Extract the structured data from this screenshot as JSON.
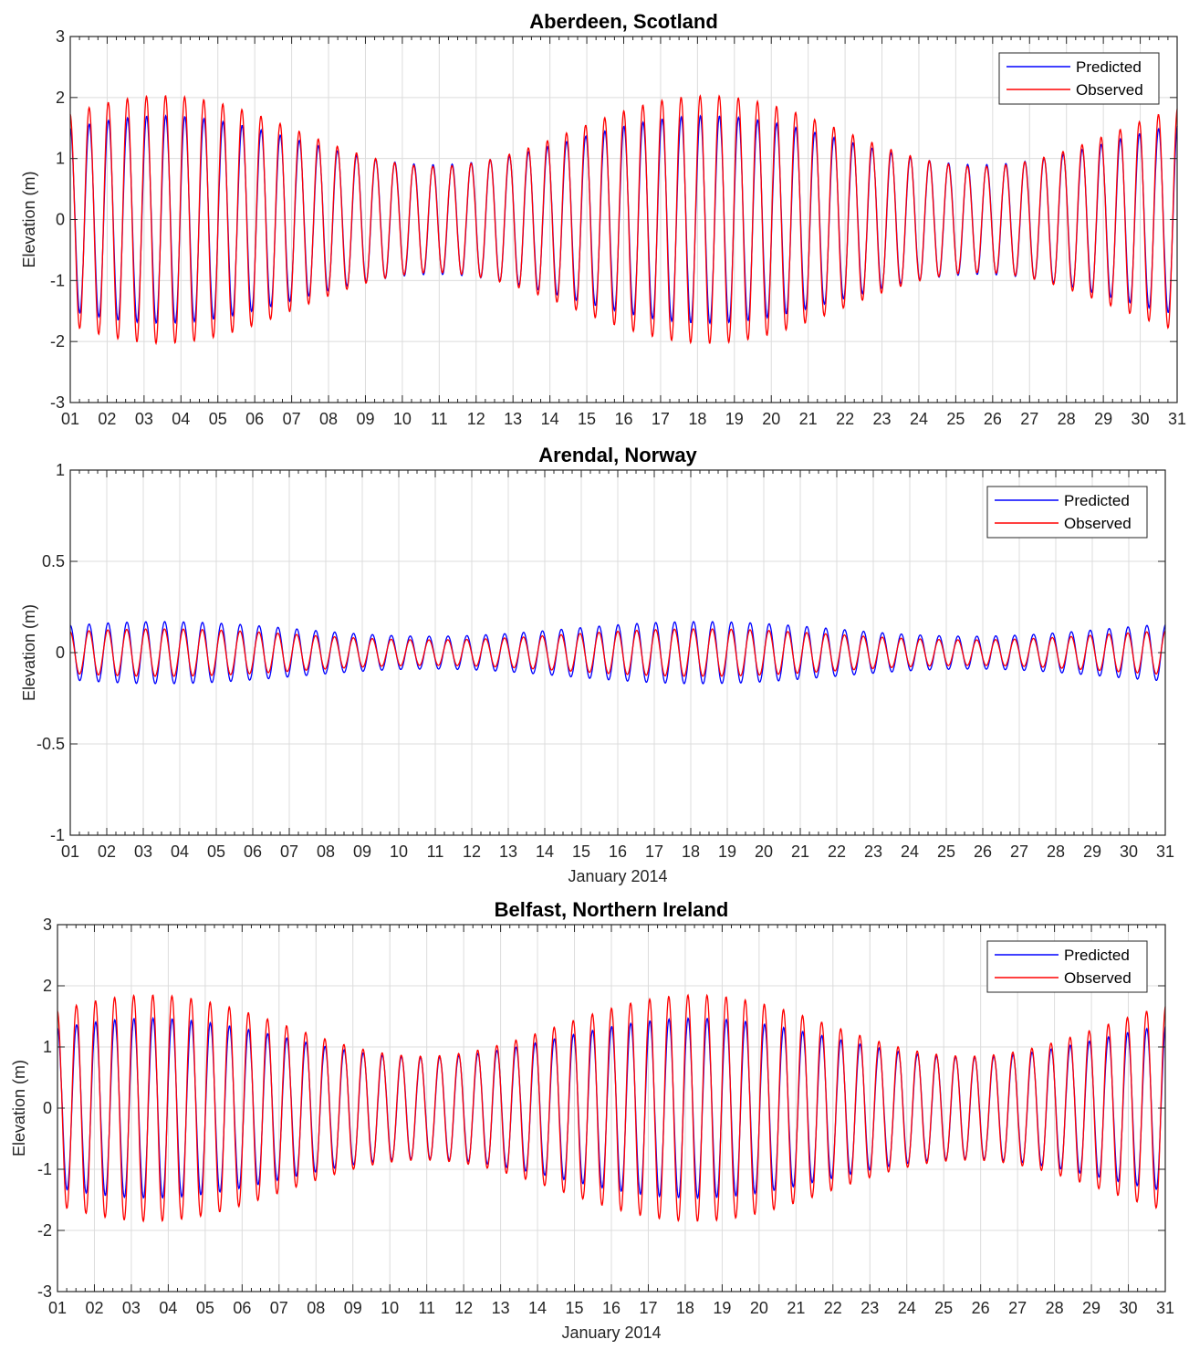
{
  "legend": {
    "predicted_label": "Predicted",
    "observed_label": "Observed"
  },
  "colors": {
    "predicted": "#0000ff",
    "observed": "#ff0000",
    "grid": "#dcdcdc",
    "axis": "#262626"
  },
  "chart_data": [
    {
      "type": "line",
      "title": "Aberdeen, Scotland",
      "xlabel": "",
      "ylabel": "Elevation (m)",
      "x_ticklabels": [
        "01",
        "02",
        "03",
        "04",
        "05",
        "06",
        "07",
        "08",
        "09",
        "10",
        "11",
        "12",
        "13",
        "14",
        "15",
        "16",
        "17",
        "18",
        "19",
        "20",
        "21",
        "22",
        "23",
        "24",
        "25",
        "26",
        "27",
        "28",
        "29",
        "30",
        "31"
      ],
      "x_range_days": [
        1,
        31
      ],
      "ylim": [
        -3,
        3
      ],
      "y_ticks": [
        -3,
        -2,
        -1,
        0,
        1,
        2,
        3
      ],
      "y_ticklabels": [
        "-3",
        "-2",
        "-1",
        "0",
        "1",
        "2",
        "3"
      ],
      "grid": true,
      "legend_position": "top-right",
      "series_params": {
        "predicted": {
          "mean_amplitude": 1.3,
          "spring_neap_variation": 0.4,
          "spring_peak_day": 3.5
        },
        "observed": {
          "mean_amplitude": 1.45,
          "spring_neap_variation": 0.58,
          "spring_peak_day": 3.5
        }
      }
    },
    {
      "type": "line",
      "title": "Arendal, Norway",
      "xlabel": "January 2014",
      "ylabel": "Elevation (m)",
      "x_ticklabels": [
        "01",
        "02",
        "03",
        "04",
        "05",
        "06",
        "07",
        "08",
        "09",
        "10",
        "11",
        "12",
        "13",
        "14",
        "15",
        "16",
        "17",
        "18",
        "19",
        "20",
        "21",
        "22",
        "23",
        "24",
        "25",
        "26",
        "27",
        "28",
        "29",
        "30",
        "31"
      ],
      "x_range_days": [
        1,
        31
      ],
      "ylim": [
        -1,
        1
      ],
      "y_ticks": [
        -1,
        -0.5,
        0,
        0.5,
        1
      ],
      "y_ticklabels": [
        "-1",
        "-0.5",
        "0",
        "0.5",
        "1"
      ],
      "grid": true,
      "legend_position": "top-right",
      "series_params": {
        "predicted": {
          "mean_amplitude": 0.13,
          "spring_neap_variation": 0.04,
          "spring_peak_day": 3.5
        },
        "observed": {
          "mean_amplitude": 0.1,
          "spring_neap_variation": 0.03,
          "spring_peak_day": 3.5
        }
      }
    },
    {
      "type": "line",
      "title": "Belfast, Northern Ireland",
      "xlabel": "January 2014",
      "ylabel": "Elevation (m)",
      "x_ticklabels": [
        "01",
        "02",
        "03",
        "04",
        "05",
        "06",
        "07",
        "08",
        "09",
        "10",
        "11",
        "12",
        "13",
        "14",
        "15",
        "16",
        "17",
        "18",
        "19",
        "20",
        "21",
        "22",
        "23",
        "24",
        "25",
        "26",
        "27",
        "28",
        "29",
        "30",
        "31"
      ],
      "x_range_days": [
        1,
        31
      ],
      "ylim": [
        -3,
        3
      ],
      "y_ticks": [
        -3,
        -2,
        -1,
        0,
        1,
        2,
        3
      ],
      "y_ticklabels": [
        "-3",
        "-2",
        "-1",
        "0",
        "1",
        "2",
        "3"
      ],
      "grid": true,
      "legend_position": "top-right",
      "series_params": {
        "predicted": {
          "mean_amplitude": 1.15,
          "spring_neap_variation": 0.32,
          "spring_peak_day": 3.5
        },
        "observed": {
          "mean_amplitude": 1.35,
          "spring_neap_variation": 0.5,
          "spring_peak_day": 3.5
        }
      }
    }
  ]
}
